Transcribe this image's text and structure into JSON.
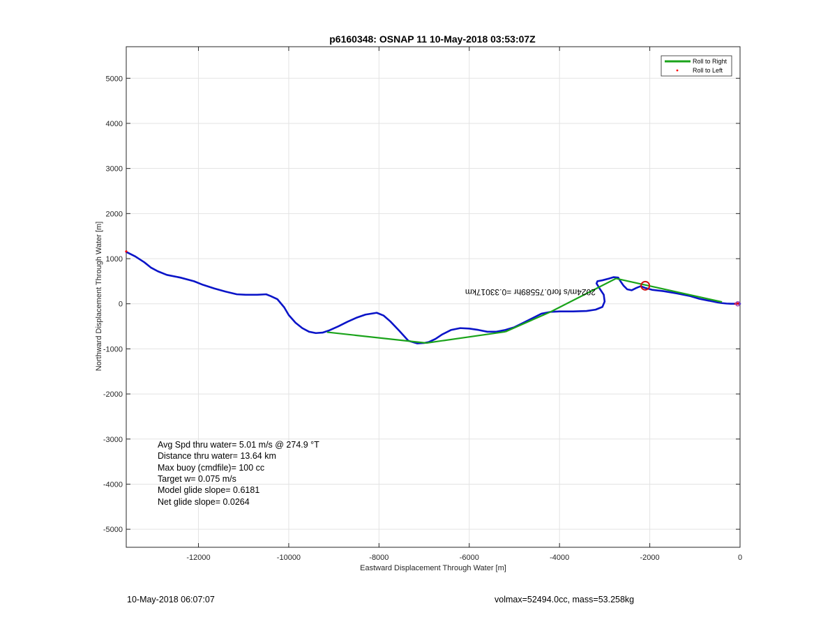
{
  "colors": {
    "track": "#0a14c8",
    "roll_right": "#1aa31a",
    "roll_left": "#ff0000",
    "surfacing_marker": "#d01010",
    "grid": "#e3e3e3",
    "axis": "#262626"
  },
  "chart_data": {
    "type": "line",
    "title": "p6160348: OSNAP 11 10-May-2018 03:53:07Z",
    "xlabel": "Eastward Displacement Through Water [m]",
    "ylabel": "Northward Displacement Through Water [m]",
    "xlim": [
      -13600,
      0
    ],
    "ylim": [
      -5400,
      5700
    ],
    "xticks": [
      -12000,
      -10000,
      -8000,
      -6000,
      -4000,
      -2000,
      0
    ],
    "xtick_labels": [
      "-12000",
      "-10000",
      "-8000",
      "-6000",
      "-4000",
      "-2000",
      "0"
    ],
    "yticks": [
      5000,
      4000,
      3000,
      2000,
      1000,
      0,
      -1000,
      -2000,
      -3000,
      -4000,
      -5000
    ],
    "ytick_labels": [
      "5000",
      "4000",
      "3000",
      "2000",
      "1000",
      "0",
      "-1000",
      "-2000",
      "-3000",
      "-4000",
      "-5000"
    ],
    "grid": true,
    "legend_position": "top-right",
    "legend": [
      "Roll to Right",
      "Roll to Left"
    ],
    "series": [
      {
        "name": "track",
        "x": [
          -13600,
          -13400,
          -13200,
          -13050,
          -12900,
          -12700,
          -12400,
          -12100,
          -11900,
          -11650,
          -11400,
          -11150,
          -10950,
          -10700,
          -10500,
          -10400,
          -10250,
          -10100,
          -10000,
          -9850,
          -9700,
          -9550,
          -9400,
          -9250,
          -9100,
          -8900,
          -8700,
          -8500,
          -8300,
          -8050,
          -7900,
          -7750,
          -7550,
          -7350,
          -7150,
          -7000,
          -6900,
          -6750,
          -6600,
          -6400,
          -6200,
          -6000,
          -5800,
          -5600,
          -5400,
          -5200,
          -5000,
          -4800,
          -4600,
          -4400,
          -4200,
          -4000,
          -3700,
          -3400,
          -3200,
          -3050,
          -3000,
          -3020,
          -3100,
          -3180,
          -3160,
          -3050,
          -2900,
          -2800,
          -2700,
          -2650,
          -2580,
          -2500,
          -2400,
          -2300,
          -2200,
          -2100,
          -1950,
          -1700,
          -1400,
          -1100,
          -900,
          -700,
          -500,
          -400,
          -300,
          -200,
          -100,
          0
        ],
        "y": [
          1150,
          1050,
          920,
          800,
          720,
          640,
          580,
          500,
          420,
          340,
          270,
          210,
          200,
          200,
          210,
          170,
          100,
          -80,
          -250,
          -420,
          -540,
          -620,
          -650,
          -640,
          -590,
          -500,
          -400,
          -310,
          -240,
          -200,
          -260,
          -390,
          -600,
          -820,
          -880,
          -870,
          -850,
          -780,
          -680,
          -580,
          -540,
          -550,
          -580,
          -620,
          -620,
          -580,
          -520,
          -420,
          -320,
          -220,
          -180,
          -170,
          -170,
          -160,
          -130,
          -70,
          50,
          200,
          320,
          450,
          500,
          520,
          560,
          590,
          580,
          500,
          400,
          320,
          300,
          350,
          390,
          350,
          310,
          280,
          230,
          170,
          110,
          70,
          30,
          15,
          5,
          0,
          0,
          0
        ]
      },
      {
        "name": "Roll to Right",
        "x": [
          -9150,
          -6950,
          -5200,
          -4200,
          -2750,
          -400
        ],
        "y": [
          -630,
          -870,
          -620,
          -180,
          560,
          40
        ]
      },
      {
        "name": "Roll to Left",
        "x": [
          -13600,
          -100,
          -50
        ],
        "y": [
          1160,
          0,
          5
        ]
      }
    ],
    "surfacing_marker": {
      "x": -2100,
      "y": 400
    },
    "end_marker": {
      "x": -50,
      "y": 0
    },
    "annotations": [
      {
        "text": "2024m/s for0.75589hr =0.33017km",
        "x": -3200,
        "y": 320,
        "rotation_deg": 180
      }
    ]
  },
  "stats": [
    "Avg Spd thru water=  5.01 m/s @ 274.9 °T",
    "Distance thru water= 13.64 km",
    "Max buoy (cmdfile)= 100 cc",
    "Target w= 0.075 m/s",
    "Model glide slope= 0.6181",
    "Net glide slope= 0.0264"
  ],
  "footer": {
    "left": "10-May-2018 06:07:07",
    "right": "volmax=52494.0cc, mass=53.258kg"
  }
}
